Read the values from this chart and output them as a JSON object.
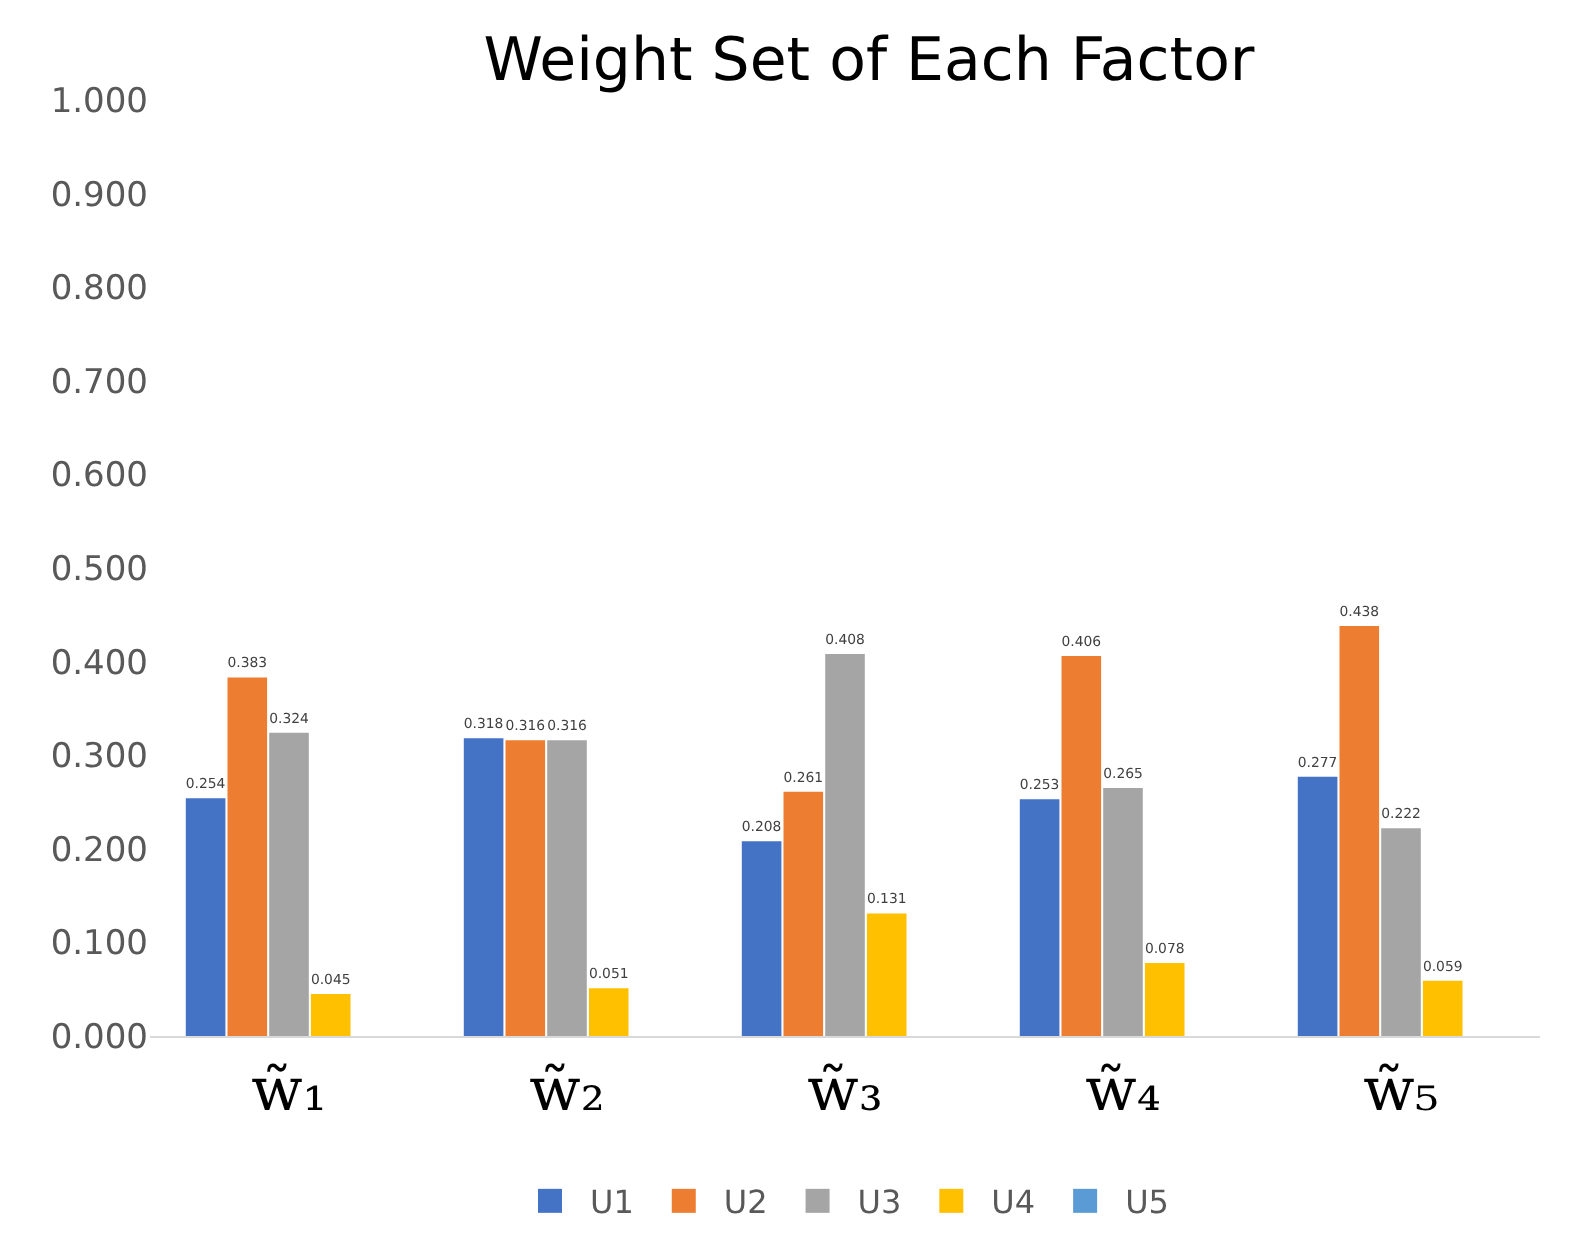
{
  "chart_data": {
    "type": "bar",
    "title": "Weight Set of Each Factor",
    "categories": [
      "w̃₁",
      "w̃₂",
      "w̃₃",
      "w̃₄",
      "w̃₅"
    ],
    "series": [
      {
        "name": "U1",
        "color": "#4472c4",
        "values": [
          0.254,
          0.318,
          0.208,
          0.253,
          0.277
        ],
        "value_labels": [
          "0.254",
          "0.318",
          "0.208",
          "0.253",
          "0.277"
        ]
      },
      {
        "name": "U2",
        "color": "#ed7d31",
        "values": [
          0.383,
          0.316,
          0.261,
          0.406,
          0.438
        ],
        "value_labels": [
          "0.383",
          "0.316",
          "0.261",
          "0.406",
          "0.438"
        ]
      },
      {
        "name": "U3",
        "color": "#a5a5a5",
        "values": [
          0.324,
          0.316,
          0.408,
          0.265,
          0.222
        ],
        "value_labels": [
          "0.324",
          "0.316",
          "0.408",
          "0.265",
          "0.222"
        ]
      },
      {
        "name": "U4",
        "color": "#ffc000",
        "values": [
          0.045,
          0.051,
          0.131,
          0.078,
          0.059
        ],
        "value_labels": [
          "0.045",
          "0.051",
          "0.131",
          "0.078",
          "0.059"
        ]
      },
      {
        "name": "U5",
        "color": "#5b9bd5",
        "values": [
          null,
          null,
          null,
          null,
          null
        ]
      }
    ],
    "ylim": [
      0,
      1
    ],
    "yticks": [
      {
        "value": 0,
        "label": "0.000"
      },
      {
        "value": 0.1,
        "label": "0.100"
      },
      {
        "value": 0.2,
        "label": "0.200"
      },
      {
        "value": 0.3,
        "label": "0.300"
      },
      {
        "value": 0.4,
        "label": "0.400"
      },
      {
        "value": 0.5,
        "label": "0.500"
      },
      {
        "value": 0.6,
        "label": "0.600"
      },
      {
        "value": 0.7,
        "label": "0.700"
      },
      {
        "value": 0.8,
        "label": "0.800"
      },
      {
        "value": 0.9,
        "label": "0.900"
      },
      {
        "value": 1,
        "label": "1.000"
      }
    ],
    "grid": false,
    "legend": "bottom"
  }
}
